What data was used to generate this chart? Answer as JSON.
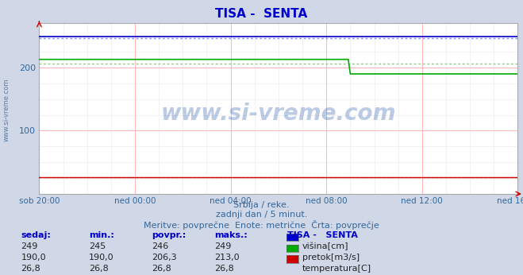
{
  "title": "TISA -  SENTA",
  "title_color": "#0000cc",
  "bg_color": "#d0d8e8",
  "plot_bg_color": "#ffffff",
  "grid_color_major": "#ffaaaa",
  "grid_color_minor": "#e8e8e8",
  "watermark_text": "www.si-vreme.com",
  "watermark_color": "#2255aa",
  "watermark_alpha": 0.3,
  "subtitle1": "Srbija / reke.",
  "subtitle2": "zadnji dan / 5 minut.",
  "subtitle3": "Meritve: povprečne  Enote: metrične  Črta: povprečje",
  "subtitle_color": "#336699",
  "x_start_hour": -20,
  "x_end_hour": 0,
  "x_tick_labels": [
    "sob 20:00",
    "ned 00:00",
    "ned 04:00",
    "ned 08:00",
    "ned 12:00",
    "ned 16:00"
  ],
  "x_tick_positions": [
    -20,
    -16,
    -12,
    -8,
    -4,
    0
  ],
  "ylim": [
    0,
    270
  ],
  "yticks": [
    100,
    200
  ],
  "height_value": 249,
  "height_avg": 246,
  "flow_before": 213.0,
  "flow_after": 190.0,
  "flow_drop_hour": -7.0,
  "flow_avg": 206.3,
  "temp_value": 26.8,
  "temp_avg": 26.8,
  "color_height": "#0000cc",
  "color_flow": "#00aa00",
  "color_temp": "#cc0000",
  "color_avg_height": "#8888ff",
  "color_avg_flow": "#88cc88",
  "color_avg_temp": "#ff8888",
  "legend_header": "TISA -   SENTA",
  "legend_label1": "višina[cm]",
  "legend_label2": "pretok[m3/s]",
  "legend_label3": "temperatura[C]",
  "table_headers": [
    "sedaj:",
    "min.:",
    "povpr.:",
    "maks.:"
  ],
  "table_row1": [
    "249",
    "245",
    "246",
    "249"
  ],
  "table_row2": [
    "190,0",
    "190,0",
    "206,3",
    "213,0"
  ],
  "table_row3": [
    "26,8",
    "26,8",
    "26,8",
    "26,8"
  ]
}
